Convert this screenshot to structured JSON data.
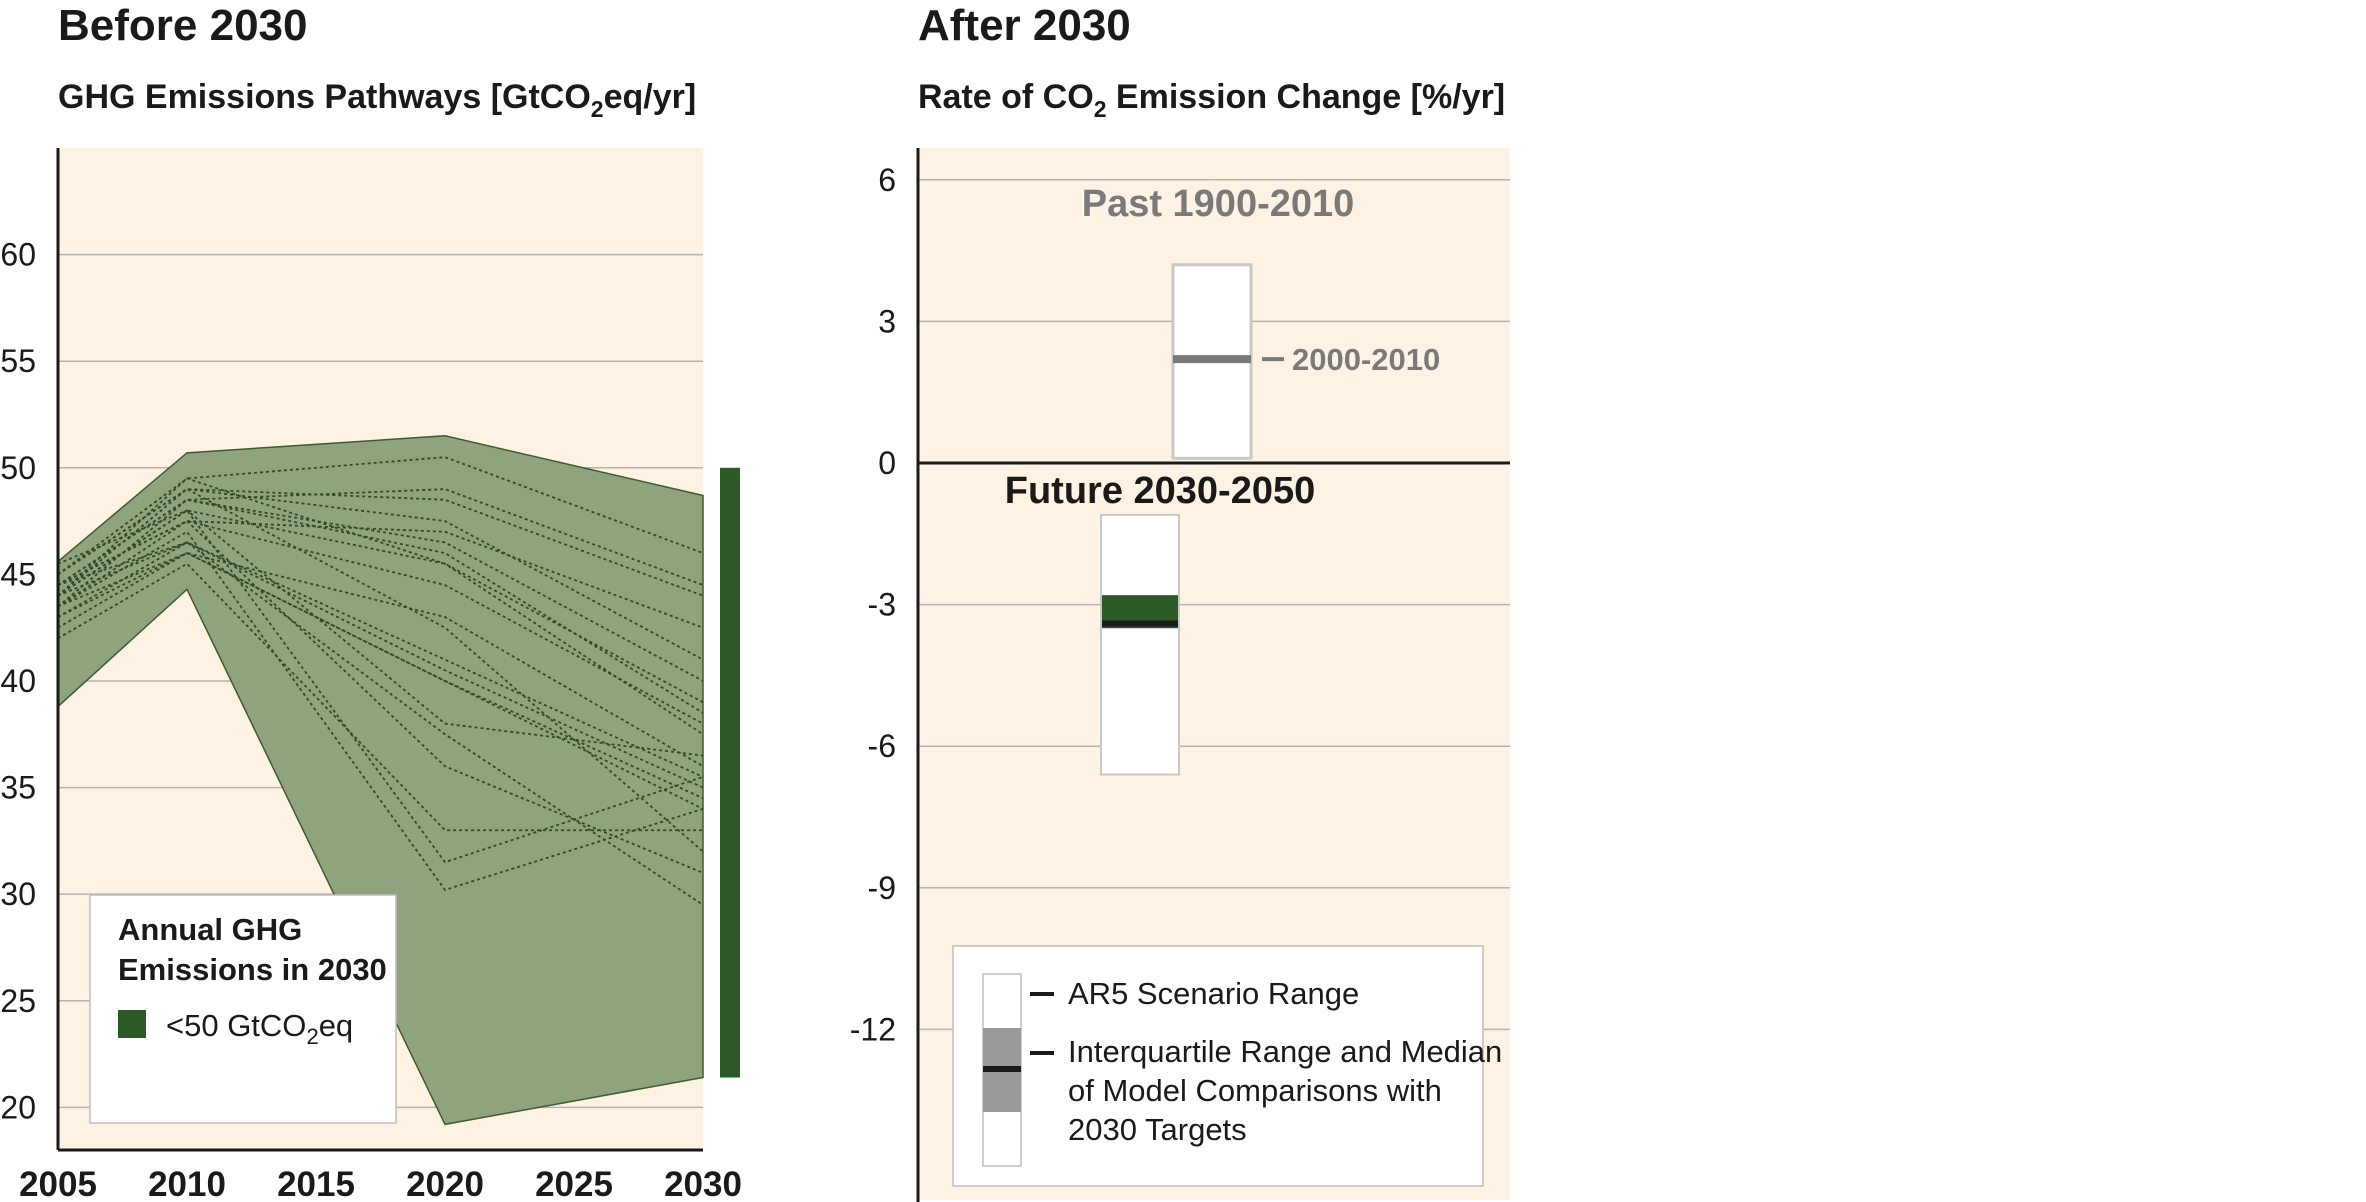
{
  "colors": {
    "panel_bg": "#fdf2e3",
    "band": "#8fa37e",
    "band_edge": "#3d5c2f",
    "dark_green": "#2b5a27",
    "grid": "#b3b3b3",
    "past_gray": "#7a7a7a",
    "iqr_gray": "#9a9a9a"
  },
  "left": {
    "header": "Before 2030",
    "subtitle": {
      "pre": "GHG Emissions Pathways [GtCO",
      "sub": "2",
      "post": "eq/yr]"
    },
    "legend": {
      "title_line1": "Annual GHG",
      "title_line2": "Emissions in 2030",
      "item": {
        "pre": "<50 GtCO",
        "sub": "2",
        "post": "eq"
      }
    }
  },
  "right": {
    "header": "After 2030",
    "subtitle": {
      "pre": "Rate of CO",
      "sub": "2",
      "post": " Emission Change [%/yr]"
    },
    "past_label": "Past 1900-2010",
    "decade_label": "2000-2010",
    "future_label": "Future 2030-2050",
    "legend": {
      "item1": "AR5 Scenario Range",
      "item2_line1": "Interquartile Range and Median",
      "item2_line2": "of Model Comparisons with",
      "item2_line3": "2030 Targets"
    }
  },
  "chart_data": [
    {
      "type": "area",
      "title": "GHG Emissions Pathways [GtCO2eq/yr]",
      "header": "Before 2030",
      "xlim": [
        2005,
        2030
      ],
      "ylim": [
        18,
        65
      ],
      "xticks": [
        2005,
        2010,
        2015,
        2020,
        2025,
        2030
      ],
      "yticks": [
        20,
        25,
        30,
        35,
        40,
        45,
        50,
        55,
        60
      ],
      "grid": true,
      "legend_position": "bottom-left",
      "range_envelope": {
        "x": [
          2005,
          2010,
          2020,
          2030
        ],
        "upper": [
          45.6,
          50.7,
          51.5,
          48.7
        ],
        "lower": [
          38.8,
          44.3,
          19.2,
          21.4
        ]
      },
      "series": [
        {
          "x": [
            2005,
            2010,
            2020,
            2030
          ],
          "values": [
            44.5,
            48.5,
            46.0,
            38.5
          ]
        },
        {
          "x": [
            2005,
            2010,
            2020,
            2030
          ],
          "values": [
            44.0,
            48.0,
            45.5,
            39.0
          ]
        },
        {
          "x": [
            2005,
            2010,
            2020,
            2030
          ],
          "values": [
            45.0,
            49.0,
            47.5,
            41.0
          ]
        },
        {
          "x": [
            2005,
            2010,
            2020,
            2030
          ],
          "values": [
            43.5,
            47.5,
            44.5,
            38.0
          ]
        },
        {
          "x": [
            2005,
            2010,
            2020,
            2030
          ],
          "values": [
            44.0,
            46.5,
            40.5,
            35.0
          ]
        },
        {
          "x": [
            2005,
            2010,
            2020,
            2030
          ],
          "values": [
            43.0,
            46.0,
            40.0,
            34.5
          ]
        },
        {
          "x": [
            2005,
            2010,
            2020,
            2030
          ],
          "values": [
            44.5,
            46.5,
            41.0,
            35.5
          ]
        },
        {
          "x": [
            2005,
            2010,
            2020,
            2030
          ],
          "values": [
            43.5,
            46.0,
            40.0,
            34.0
          ]
        },
        {
          "x": [
            2005,
            2010,
            2020,
            2030
          ],
          "values": [
            45.0,
            49.5,
            50.5,
            46.0
          ]
        },
        {
          "x": [
            2005,
            2010,
            2020,
            2030
          ],
          "values": [
            44.5,
            48.5,
            49.0,
            44.5
          ]
        },
        {
          "x": [
            2005,
            2010,
            2020,
            2030
          ],
          "values": [
            45.0,
            49.0,
            48.5,
            44.0
          ]
        },
        {
          "x": [
            2005,
            2010,
            2020,
            2030
          ],
          "values": [
            44.5,
            47.5,
            47.0,
            42.5
          ]
        },
        {
          "x": [
            2005,
            2010,
            2020,
            2030
          ],
          "values": [
            43.5,
            48.5,
            46.5,
            40.0
          ]
        },
        {
          "x": [
            2005,
            2010,
            2020,
            2030
          ],
          "values": [
            44.0,
            49.5,
            45.5,
            37.5
          ]
        },
        {
          "x": [
            2005,
            2010,
            2020,
            2030
          ],
          "values": [
            42.5,
            46.0,
            43.0,
            36.0
          ]
        },
        {
          "x": [
            2005,
            2010,
            2020,
            2030
          ],
          "values": [
            44.0,
            48.0,
            31.5,
            35.5
          ]
        },
        {
          "x": [
            2005,
            2010,
            2020,
            2030
          ],
          "values": [
            43.5,
            47.0,
            30.2,
            34.0
          ]
        },
        {
          "x": [
            2005,
            2010,
            2020,
            2030
          ],
          "values": [
            42.0,
            45.5,
            33.0,
            33.0
          ]
        },
        {
          "x": [
            2005,
            2010,
            2020,
            2030
          ],
          "values": [
            44.5,
            47.5,
            36.0,
            31.0
          ]
        },
        {
          "x": [
            2005,
            2010,
            2020,
            2030
          ],
          "values": [
            43.0,
            46.5,
            37.5,
            29.5
          ]
        },
        {
          "x": [
            2005,
            2010,
            2020,
            2030
          ],
          "values": [
            44.0,
            49.0,
            42.5,
            32.0
          ]
        },
        {
          "x": [
            2005,
            2010,
            2020,
            2030
          ],
          "values": [
            45.5,
            48.0,
            38.0,
            36.5
          ]
        }
      ],
      "side_bar": {
        "name": "<50 GtCO2eq",
        "range": [
          21.4,
          50.0
        ]
      }
    },
    {
      "type": "box",
      "title": "Rate of CO2 Emission Change [%/yr]",
      "header": "After 2030",
      "ylim": [
        -14,
        6.5
      ],
      "yticks": [
        6,
        3,
        0,
        -3,
        -6,
        -9,
        -12
      ],
      "grid": true,
      "legend_position": "bottom",
      "boxes": [
        {
          "name": "Past 1900-2010",
          "range": [
            0.1,
            4.2
          ],
          "marker": {
            "name": "2000-2010",
            "value": 2.2
          }
        },
        {
          "name": "Future 2030-2050",
          "range": [
            -6.6,
            -1.1
          ],
          "iqr": [
            -3.5,
            -2.8
          ],
          "median": -3.4
        }
      ]
    }
  ]
}
